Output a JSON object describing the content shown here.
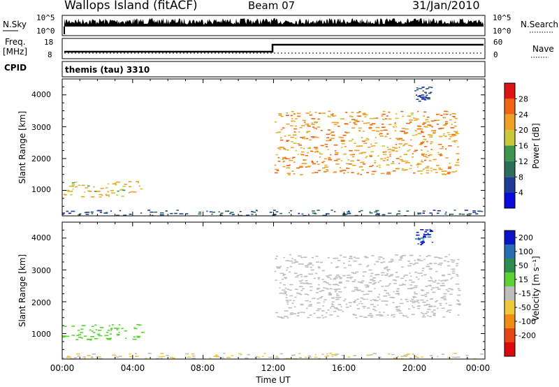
{
  "header": {
    "title": "Wallops Island (fitACF)",
    "beam": "Beam 07",
    "date": "31/Jan/2010"
  },
  "strips": {
    "nsky_label": "N.Sky",
    "nsky_ticks": [
      "10^5",
      "10^0"
    ],
    "nsearch_label": "N.Search",
    "nsearch_ticks": [
      "10^5",
      "10^0"
    ],
    "freq_label_1": "Freq.",
    "freq_label_2": "[MHz]",
    "freq_ticks": [
      "18",
      "8"
    ],
    "nave_label": "Nave",
    "nave_ticks": [
      "60",
      "0"
    ],
    "cpid_label": "CPID",
    "cpid_value": "themis (tau) 3310",
    "freq_step_time_hours": 12
  },
  "panels": {
    "ylabel": "Slant Range [km]",
    "yticks": [
      "4000",
      "3000",
      "2000",
      "1000"
    ],
    "xticks": [
      "00:00",
      "04:00",
      "08:00",
      "12:00",
      "16:00",
      "20:00",
      "00:00"
    ],
    "xlabel": "Time UT"
  },
  "power_colorbar": {
    "label": "Power [dB]",
    "ticks": [
      "28",
      "24",
      "20",
      "16",
      "12",
      "8",
      "4"
    ],
    "colors": [
      "#dc1414",
      "#f06414",
      "#f0a028",
      "#c8c83c",
      "#3c9650",
      "#2d6e5a",
      "#1e3c96",
      "#0a0adc"
    ]
  },
  "velocity_colorbar": {
    "label": "Velocity [m s⁻¹]",
    "ticks": [
      "200",
      "100",
      "50",
      "15",
      "-15",
      "-50",
      "-100",
      "-200"
    ],
    "colors": [
      "#0a14c8",
      "#286eb4",
      "#2d8c50",
      "#5ad232",
      "#bebebe",
      "#f0c83c",
      "#f08c14",
      "#e64614",
      "#dc0a0a"
    ]
  },
  "chart_data": [
    {
      "type": "heatmap",
      "title": "Power",
      "xlabel": "Time UT",
      "ylabel": "Slant Range [km]",
      "xlim_hours": [
        0,
        24
      ],
      "ylim_km": [
        200,
        4500
      ],
      "colorbar_label": "Power [dB]",
      "colorbar_range": [
        0,
        30
      ],
      "series": [
        {
          "region": "near-range band",
          "x_hours": [
            0,
            4.5
          ],
          "y_km": [
            800,
            1300
          ],
          "value_db": 18
        },
        {
          "region": "low-range trace",
          "x_hours": [
            0,
            24
          ],
          "y_km": [
            220,
            400
          ],
          "value_db": 6
        },
        {
          "region": "evening arc",
          "x_hours": [
            12,
            22.5
          ],
          "y_km": [
            1500,
            3500
          ],
          "value_db": 22
        },
        {
          "region": "far-range patches",
          "x_hours": [
            20,
            21
          ],
          "y_km": [
            3800,
            4300
          ],
          "value_db": 5
        }
      ]
    },
    {
      "type": "heatmap",
      "title": "Velocity",
      "xlabel": "Time UT",
      "ylabel": "Slant Range [km]",
      "xlim_hours": [
        0,
        24
      ],
      "ylim_km": [
        200,
        4500
      ],
      "colorbar_label": "Velocity [m s⁻¹]",
      "colorbar_range": [
        -250,
        250
      ],
      "series": [
        {
          "region": "near-range band",
          "x_hours": [
            0,
            4.5
          ],
          "y_km": [
            800,
            1300
          ],
          "value_ms": 60
        },
        {
          "region": "low-range trace",
          "x_hours": [
            0,
            24
          ],
          "y_km": [
            220,
            400
          ],
          "value_ms": -30
        },
        {
          "region": "evening arc",
          "x_hours": [
            12,
            22.5
          ],
          "y_km": [
            1500,
            3500
          ],
          "value_ms": 0
        },
        {
          "region": "far-range patches",
          "x_hours": [
            20,
            21
          ],
          "y_km": [
            3800,
            4300
          ],
          "value_ms": 220
        }
      ]
    }
  ]
}
